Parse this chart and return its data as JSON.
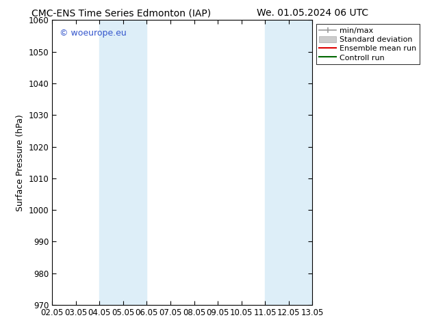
{
  "title_left": "CMC-ENS Time Series Edmonton (IAP)",
  "title_right": "We. 01.05.2024 06 UTC",
  "ylabel": "Surface Pressure (hPa)",
  "ylim": [
    970,
    1060
  ],
  "yticks": [
    970,
    980,
    990,
    1000,
    1010,
    1020,
    1030,
    1040,
    1050,
    1060
  ],
  "xtick_labels": [
    "02.05",
    "03.05",
    "04.05",
    "05.05",
    "06.05",
    "07.05",
    "08.05",
    "09.05",
    "10.05",
    "11.05",
    "12.05",
    "13.05"
  ],
  "xtick_positions": [
    0,
    1,
    2,
    3,
    4,
    5,
    6,
    7,
    8,
    9,
    10,
    11
  ],
  "shaded_bands": [
    {
      "x_start": 2,
      "x_end": 4,
      "color": "#ddeef8"
    },
    {
      "x_start": 9,
      "x_end": 11,
      "color": "#ddeef8"
    }
  ],
  "watermark_text": "© woeurope.eu",
  "watermark_color": "#3355cc",
  "bg_color": "#ffffff",
  "plot_bg_color": "#ffffff",
  "title_fontsize": 10,
  "axis_fontsize": 9,
  "tick_fontsize": 8.5,
  "legend_fontsize": 8
}
